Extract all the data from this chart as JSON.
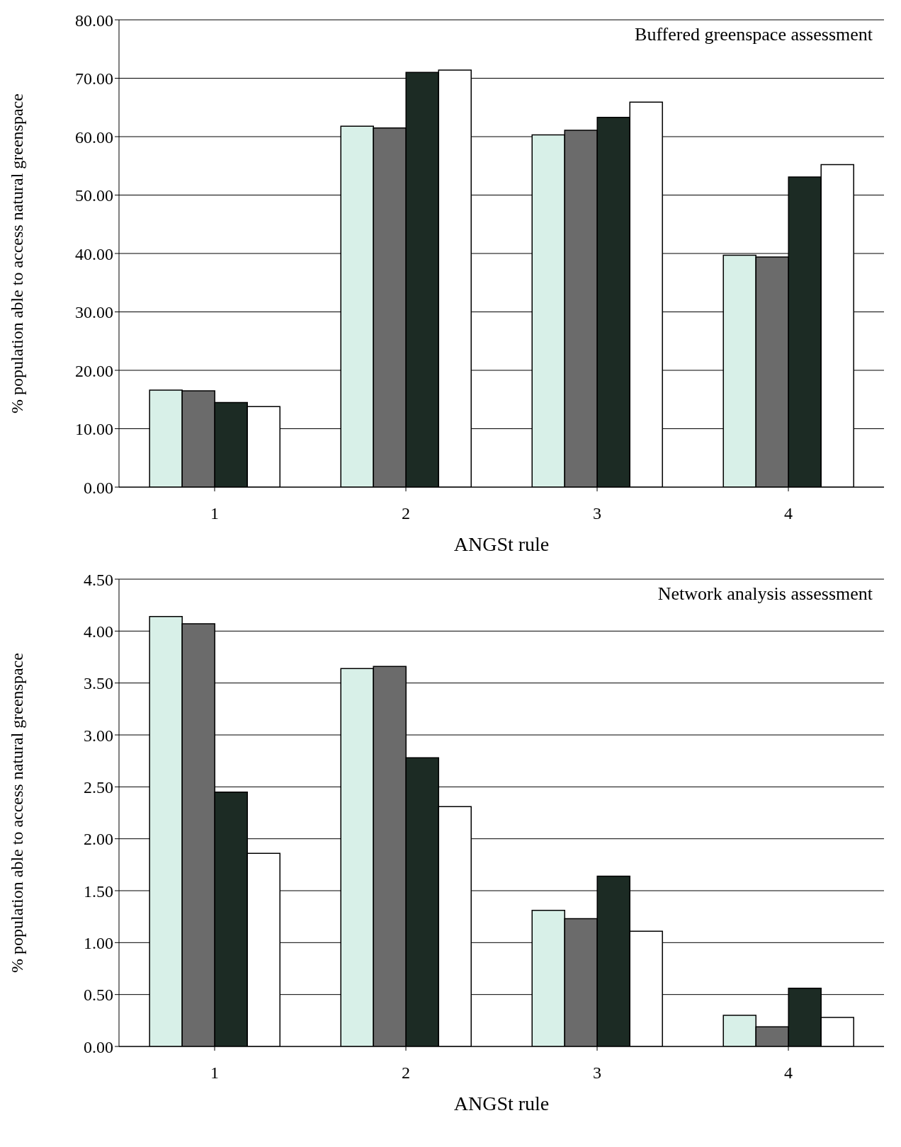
{
  "chart_data": [
    {
      "type": "bar",
      "categories": [
        "1",
        "2",
        "3",
        "4"
      ],
      "xlabel": "ANGSt rule",
      "ylabel": "% population able to access natural greenspace",
      "annotations": [
        "Buffered greenspace assessment"
      ],
      "ylim": [
        0,
        80
      ],
      "yticks": [
        {
          "value": 0,
          "label": "0.00"
        },
        {
          "value": 10,
          "label": "10.00"
        },
        {
          "value": 20,
          "label": "20.00"
        },
        {
          "value": 30,
          "label": "30.00"
        },
        {
          "value": 40,
          "label": "40.00"
        },
        {
          "value": 50,
          "label": "50.00"
        },
        {
          "value": 60,
          "label": "60.00"
        },
        {
          "value": 70,
          "label": "70.00"
        },
        {
          "value": 80,
          "label": "80.00"
        }
      ],
      "grid": "y",
      "legend": false,
      "series": [
        {
          "color": "#d8f0e8",
          "values": [
            16.6,
            61.8,
            60.3,
            39.7
          ]
        },
        {
          "color": "#6b6b6b",
          "values": [
            16.5,
            61.5,
            61.1,
            39.4
          ]
        },
        {
          "color": "#1c2b24",
          "values": [
            14.5,
            71.0,
            63.3,
            53.1
          ]
        },
        {
          "color": "#ffffff",
          "values": [
            13.8,
            71.4,
            65.9,
            55.2
          ]
        }
      ]
    },
    {
      "type": "bar",
      "categories": [
        "1",
        "2",
        "3",
        "4"
      ],
      "xlabel": "ANGSt rule",
      "ylabel": "% population able to access natural greenspace",
      "annotations": [
        "Network analysis assessment"
      ],
      "ylim": [
        0,
        4.5
      ],
      "yticks": [
        {
          "value": 0,
          "label": "0.00"
        },
        {
          "value": 0.5,
          "label": "0.50"
        },
        {
          "value": 1,
          "label": "1.00"
        },
        {
          "value": 1.5,
          "label": "1.50"
        },
        {
          "value": 2,
          "label": "2.00"
        },
        {
          "value": 2.5,
          "label": "2.50"
        },
        {
          "value": 3,
          "label": "3.00"
        },
        {
          "value": 3.5,
          "label": "3.50"
        },
        {
          "value": 4,
          "label": "4.00"
        },
        {
          "value": 4.5,
          "label": "4.50"
        }
      ],
      "grid": "y",
      "legend": false,
      "series": [
        {
          "color": "#d8f0e8",
          "values": [
            4.14,
            3.64,
            1.31,
            0.3
          ]
        },
        {
          "color": "#6b6b6b",
          "values": [
            4.07,
            3.66,
            1.23,
            0.19
          ]
        },
        {
          "color": "#1c2b24",
          "values": [
            2.45,
            2.78,
            1.64,
            0.56
          ]
        },
        {
          "color": "#ffffff",
          "values": [
            1.86,
            2.31,
            1.11,
            0.28
          ]
        }
      ]
    }
  ]
}
